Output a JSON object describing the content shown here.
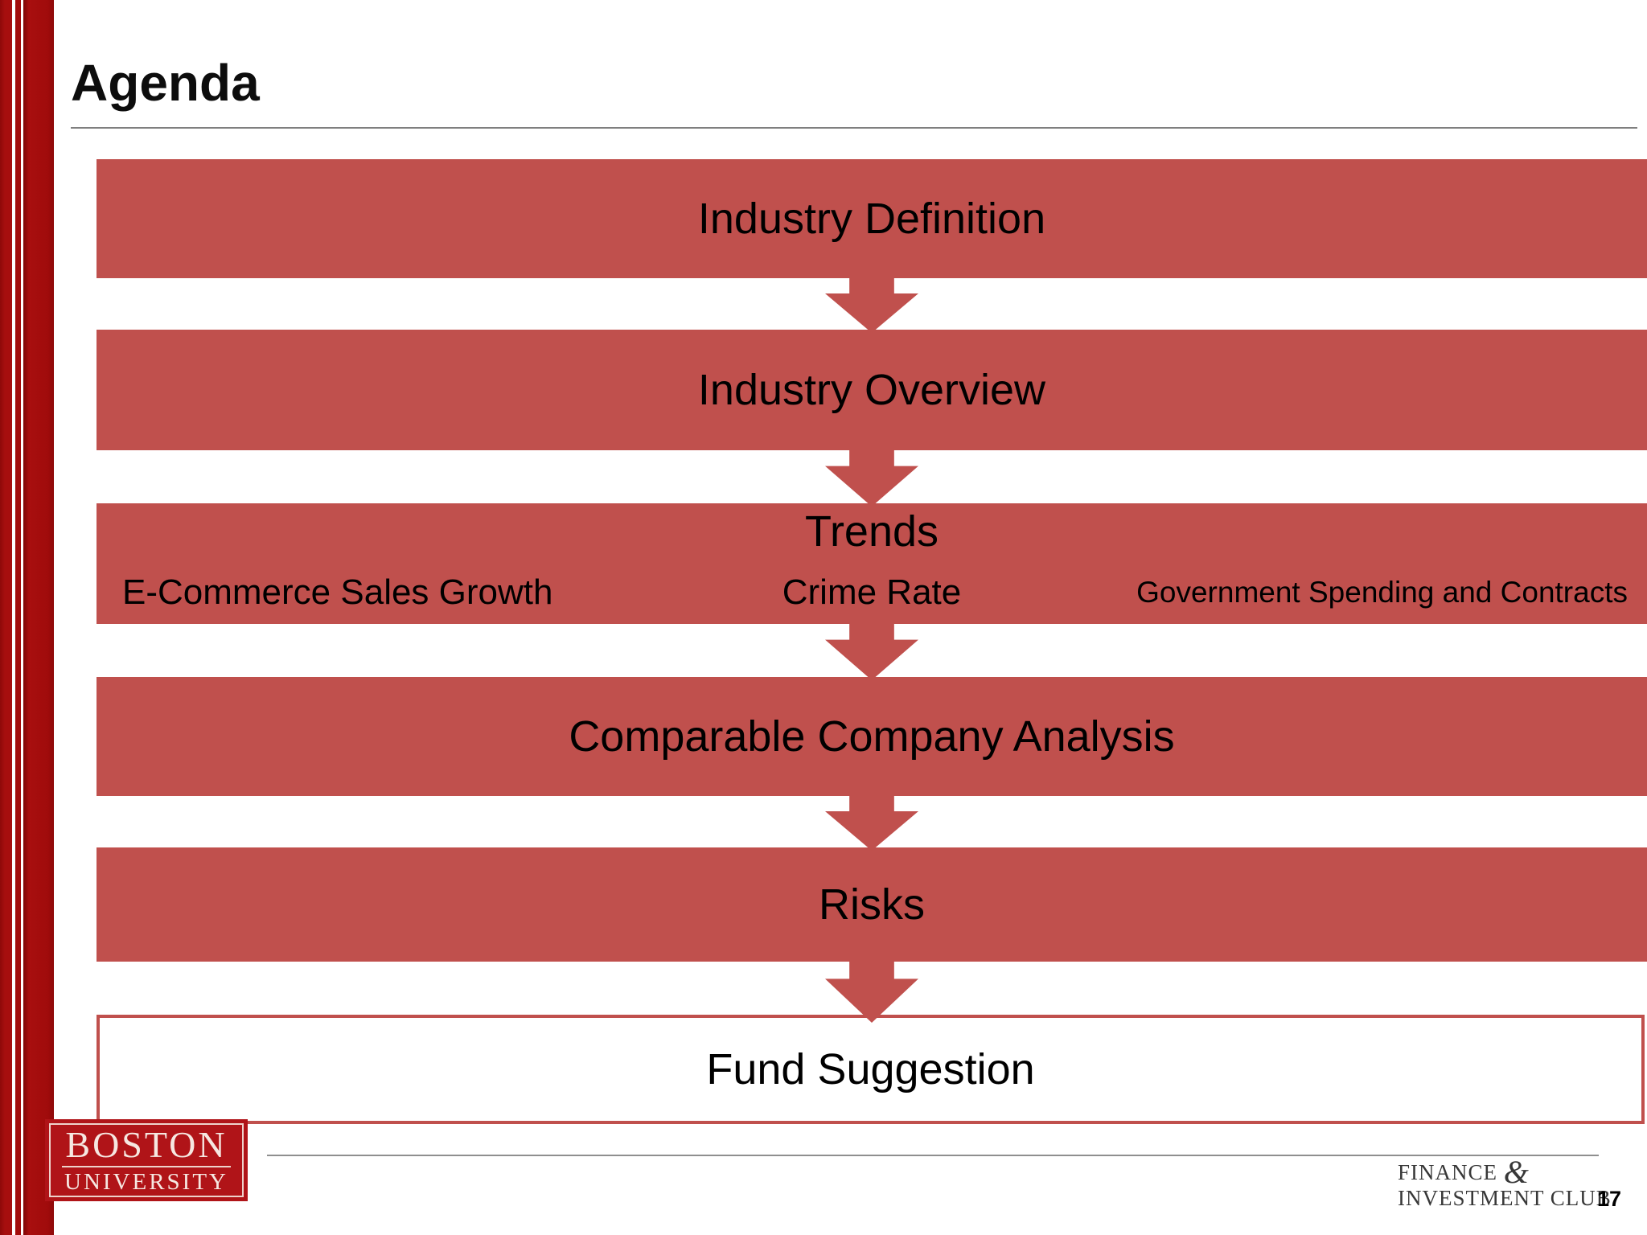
{
  "slide": {
    "title": "Agenda"
  },
  "flow": {
    "steps": [
      {
        "label": "Industry Definition",
        "style": "filled-bar"
      },
      {
        "label": "Industry Overview",
        "style": "filled-bar"
      },
      {
        "label": "Trends",
        "style": "filled-bar",
        "sub_items": [
          "E-Commerce Sales Growth",
          "Crime Rate",
          "Government Spending and Contracts"
        ]
      },
      {
        "label": "Comparable Company Analysis",
        "style": "filled-bar"
      },
      {
        "label": "Risks",
        "style": "filled-bar"
      },
      {
        "label": "Fund Suggestion",
        "style": "outlined-box"
      }
    ]
  },
  "footer": {
    "university_logo": {
      "line1": "BOSTON",
      "line2": "UNIVERSITY"
    },
    "club_logo": {
      "word1": "FINANCE",
      "amp": "&",
      "line2": "INVESTMENT CLUB"
    },
    "page_number": "17"
  },
  "colors": {
    "bar_red": "#c0504d",
    "stripe_dark_red": "#a30c0c",
    "bu_logo_red": "#b01418",
    "bu_logo_text": "#f6e7e1",
    "title_text": "#0d0d0d",
    "rule_gray": "#7f7f7f",
    "footer_rule_gray": "#8f8f8f",
    "club_text": "#383838"
  }
}
